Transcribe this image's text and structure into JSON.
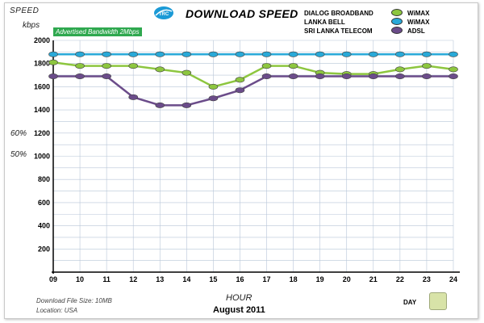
{
  "header": {
    "speed_label": "SPEED",
    "unit_label": "kbps",
    "title": "DOWNLOAD SPEED",
    "logo_text": "TRC",
    "badge": "Advertised Bandwidth 2Mbps",
    "pct_60": "60%",
    "pct_50": "50%"
  },
  "legend": [
    {
      "operator": "DIALOG BROADBAND",
      "name": "WiMAX",
      "color": "#8dc63f"
    },
    {
      "operator": "LANKA BELL",
      "name": "WiMAX",
      "color": "#29a9d8"
    },
    {
      "operator": "SRI LANKA TELECOM",
      "name": "ADSL",
      "color": "#6b4c8a"
    }
  ],
  "footer": {
    "file_size": "Download File Size: 10MB",
    "location": "Location:  USA",
    "xlabel": "HOUR",
    "month": "August 2011",
    "day_label": "DAY"
  },
  "chart_data": {
    "type": "line",
    "title": "DOWNLOAD SPEED",
    "xlabel": "HOUR",
    "ylabel": "SPEED kbps",
    "x": [
      "09",
      "10",
      "11",
      "12",
      "13",
      "14",
      "15",
      "16",
      "17",
      "18",
      "19",
      "20",
      "21",
      "22",
      "23",
      "24"
    ],
    "y_ticks": [
      200,
      400,
      600,
      800,
      1000,
      1200,
      1400,
      1600,
      1800,
      2000
    ],
    "ylim": [
      0,
      2000
    ],
    "grid": true,
    "series": [
      {
        "name": "WiMAX",
        "operator": "DIALOG BROADBAND",
        "color": "#8dc63f",
        "values": [
          1810,
          1780,
          1780,
          1780,
          1750,
          1720,
          1600,
          1660,
          1780,
          1780,
          1720,
          1710,
          1710,
          1750,
          1780,
          1750
        ]
      },
      {
        "name": "WiMAX",
        "operator": "LANKA BELL",
        "color": "#29a9d8",
        "values": [
          1880,
          1880,
          1880,
          1880,
          1880,
          1880,
          1880,
          1880,
          1880,
          1880,
          1880,
          1880,
          1880,
          1880,
          1880,
          1880
        ]
      },
      {
        "name": "ADSL",
        "operator": "SRI LANKA TELECOM",
        "color": "#6b4c8a",
        "values": [
          1690,
          1690,
          1690,
          1510,
          1440,
          1440,
          1500,
          1570,
          1690,
          1690,
          1690,
          1690,
          1690,
          1690,
          1690,
          1690
        ]
      }
    ]
  }
}
